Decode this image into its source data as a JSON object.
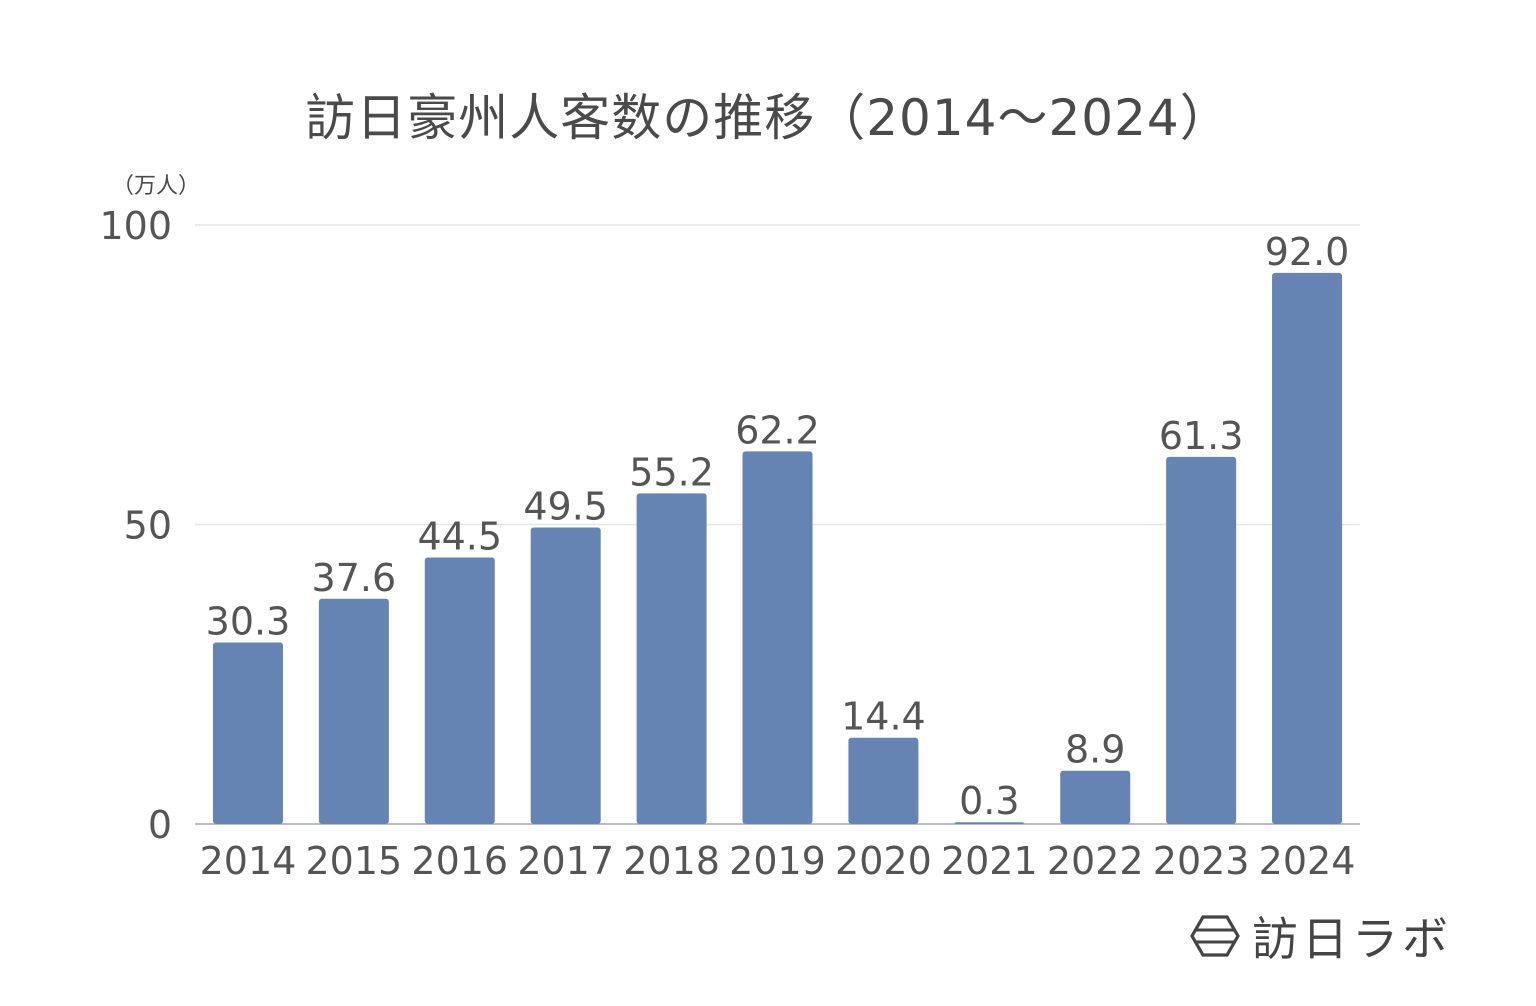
{
  "chart_data": {
    "type": "bar",
    "title": "訪日豪州人客数の推移（2014〜2024）",
    "ylabel": "（万人）",
    "xlabel": "",
    "categories": [
      "2014",
      "2015",
      "2016",
      "2017",
      "2018",
      "2019",
      "2020",
      "2021",
      "2022",
      "2023",
      "2024"
    ],
    "values": [
      30.3,
      37.6,
      44.5,
      49.5,
      55.2,
      62.2,
      14.4,
      0.3,
      8.9,
      61.3,
      92.0
    ],
    "data_labels": [
      "30.3",
      "37.6",
      "44.5",
      "49.5",
      "55.2",
      "62.2",
      "14.4",
      "0.3",
      "8.9",
      "61.3",
      "92.0"
    ],
    "ylim": [
      0,
      100
    ],
    "yticks": [
      0,
      50,
      100
    ],
    "ytick_labels": [
      "0",
      "50",
      "100"
    ],
    "grid": true,
    "legend": "none",
    "bar_color": "#6684b3"
  },
  "brand": {
    "name": "訪日ラボ",
    "icon": "hexagon-logo-icon"
  }
}
